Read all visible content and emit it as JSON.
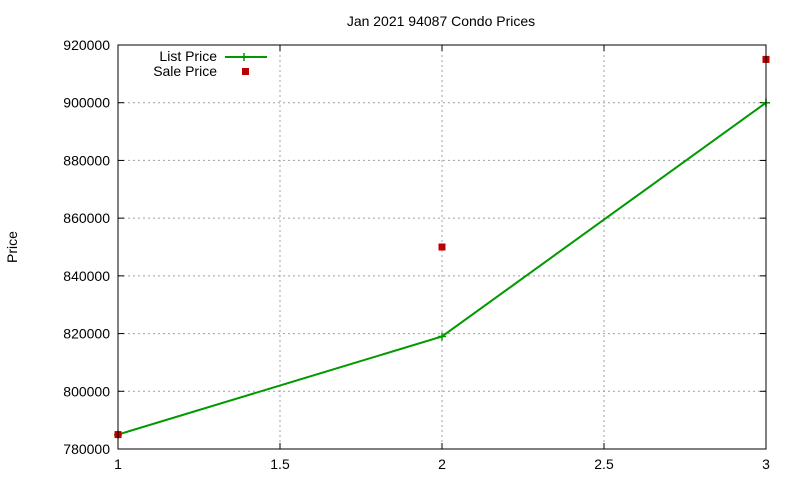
{
  "chart_data": {
    "type": "line",
    "title": "Jan 2021 94087 Condo Prices",
    "xlabel": "",
    "ylabel": "Price",
    "xlim": [
      1,
      3
    ],
    "ylim": [
      780000,
      920000
    ],
    "x_ticks": [
      1,
      1.5,
      2,
      2.5,
      3
    ],
    "x_tick_labels": [
      "1",
      "1.5",
      "2",
      "2.5",
      "3"
    ],
    "y_ticks": [
      780000,
      800000,
      820000,
      840000,
      860000,
      880000,
      900000,
      920000
    ],
    "y_tick_labels": [
      "780000",
      "800000",
      "820000",
      "840000",
      "860000",
      "880000",
      "900000",
      "920000"
    ],
    "grid": true,
    "legend_position": "top-left",
    "series": [
      {
        "name": "List Price",
        "style": "linespoints",
        "marker": "plus",
        "color": "#009900",
        "points": [
          {
            "x": 1,
            "y": 785000
          },
          {
            "x": 2,
            "y": 819000
          },
          {
            "x": 3,
            "y": 900000
          }
        ]
      },
      {
        "name": "Sale Price",
        "style": "points",
        "marker": "square",
        "color": "#bb0000",
        "points": [
          {
            "x": 1,
            "y": 785000
          },
          {
            "x": 2,
            "y": 850000
          },
          {
            "x": 3,
            "y": 915000
          }
        ]
      }
    ]
  }
}
